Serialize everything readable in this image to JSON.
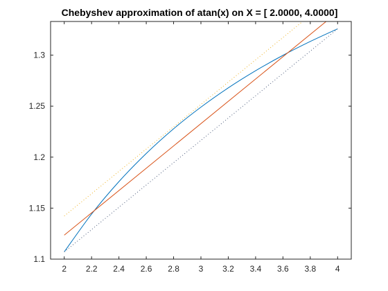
{
  "chart_data": {
    "type": "line",
    "title": "Chebyshev approximation of atan(x) on X = [    2.0000,    4.0000]",
    "xlabel": "",
    "ylabel": "",
    "xlim": [
      1.9,
      4.1
    ],
    "ylim": [
      1.1,
      1.333
    ],
    "xticks": [
      2,
      2.2,
      2.4,
      2.6,
      2.8,
      3,
      3.2,
      3.4,
      3.6,
      3.8,
      4
    ],
    "xtick_labels": [
      "2",
      "2.2",
      "2.4",
      "2.6",
      "2.8",
      "3",
      "3.2",
      "3.4",
      "3.6",
      "3.8",
      "4"
    ],
    "yticks": [
      1.1,
      1.15,
      1.2,
      1.25,
      1.3
    ],
    "ytick_labels": [
      "1.1",
      "1.15",
      "1.2",
      "1.25",
      "1.3"
    ],
    "grid": false,
    "legend": "none",
    "series": [
      {
        "color": "#0072BD",
        "style": "solid",
        "x": [
          2.0,
          2.2,
          2.4,
          2.6,
          2.8,
          3.0,
          3.2,
          3.4,
          3.6,
          3.8,
          4.0
        ],
        "y": [
          1.1071,
          1.1442,
          1.176,
          1.2036,
          1.2278,
          1.249,
          1.2679,
          1.2847,
          1.2998,
          1.3134,
          1.3258
        ]
      },
      {
        "color": "#D95319",
        "style": "solid",
        "x": [
          2.0,
          4.0
        ],
        "y": [
          1.1235,
          1.3422
        ]
      },
      {
        "color": "#EDB120",
        "style": "dotted",
        "x": [
          2.0,
          4.0
        ],
        "y": [
          1.1423,
          1.361
        ]
      },
      {
        "color": "#4A5A7A",
        "style": "dotted",
        "x": [
          2.0,
          4.0
        ],
        "y": [
          1.1071,
          1.3258
        ]
      }
    ]
  }
}
